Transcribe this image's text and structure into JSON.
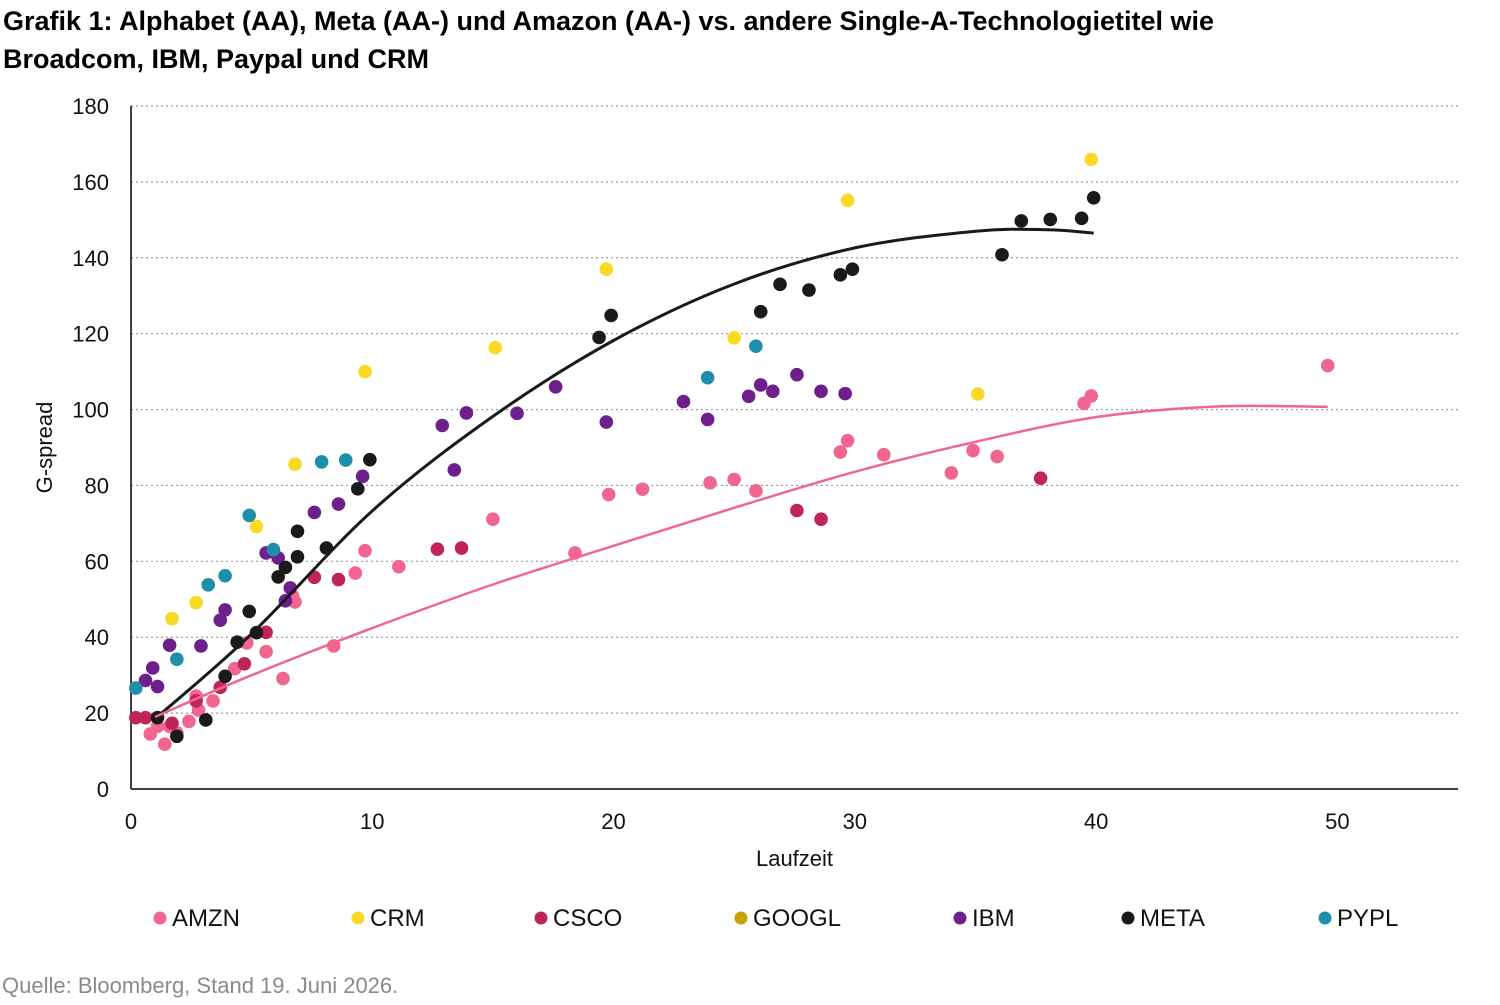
{
  "title_line1": "Grafik 1: Alphabet (AA), Meta (AA-) und Amazon (AA-) vs. andere Single-A-Technologietitel wie",
  "title_line2": "Broadcom, IBM, Paypal und CRM",
  "source": "Quelle: Bloomberg, Stand 19. Juni 2026.",
  "chart_data": {
    "type": "scatter",
    "xlabel": "Laufzeit",
    "ylabel": "G-spread",
    "xlim": [
      0,
      55
    ],
    "ylim": [
      0,
      180
    ],
    "x_ticks": [
      0,
      10,
      20,
      30,
      40,
      50
    ],
    "y_ticks": [
      0,
      20,
      40,
      60,
      80,
      100,
      120,
      140,
      160,
      180
    ],
    "grid": "horizontal dotted",
    "legend_position": "bottom",
    "series": [
      {
        "name": "AMZN",
        "color": "#f0668f",
        "points": [
          [
            0.8,
            14.5
          ],
          [
            1.1,
            16.5
          ],
          [
            1.4,
            11.8
          ],
          [
            1.6,
            16.5
          ],
          [
            1.9,
            14.8
          ],
          [
            2.4,
            17.8
          ],
          [
            2.7,
            24.5
          ],
          [
            2.8,
            20.8
          ],
          [
            3.4,
            23.2
          ],
          [
            4.3,
            31.7
          ],
          [
            4.8,
            38.5
          ],
          [
            5.6,
            36.2
          ],
          [
            6.3,
            29.1
          ],
          [
            6.7,
            50.8
          ],
          [
            6.8,
            49.3
          ],
          [
            8.4,
            37.7
          ],
          [
            9.3,
            56.9
          ],
          [
            9.7,
            62.8
          ],
          [
            11.1,
            58.6
          ],
          [
            15.0,
            71.1
          ],
          [
            18.4,
            62.2
          ],
          [
            19.8,
            77.6
          ],
          [
            21.2,
            79.0
          ],
          [
            24.0,
            80.7
          ],
          [
            25.0,
            81.6
          ],
          [
            25.9,
            78.6
          ],
          [
            29.4,
            88.8
          ],
          [
            29.7,
            91.8
          ],
          [
            31.2,
            88.1
          ],
          [
            34.0,
            83.3
          ],
          [
            34.9,
            89.2
          ],
          [
            35.9,
            87.6
          ],
          [
            39.5,
            101.6
          ],
          [
            39.8,
            103.6
          ],
          [
            49.6,
            111.6
          ]
        ]
      },
      {
        "name": "CRM",
        "color": "#f9d923",
        "points": [
          [
            1.7,
            44.9
          ],
          [
            2.7,
            49.1
          ],
          [
            5.2,
            69.2
          ],
          [
            6.8,
            85.6
          ],
          [
            9.7,
            110.0
          ],
          [
            15.1,
            116.3
          ],
          [
            19.7,
            137.0
          ],
          [
            25.0,
            118.9
          ],
          [
            29.7,
            155.1
          ],
          [
            35.1,
            104.1
          ],
          [
            39.8,
            165.9
          ]
        ]
      },
      {
        "name": "CSCO",
        "color": "#c0245c",
        "points": [
          [
            0.2,
            18.8
          ],
          [
            0.6,
            18.8
          ],
          [
            1.7,
            17.3
          ],
          [
            2.7,
            23.2
          ],
          [
            3.7,
            26.8
          ],
          [
            4.7,
            33.0
          ],
          [
            5.6,
            41.3
          ],
          [
            7.6,
            55.8
          ],
          [
            8.6,
            55.2
          ],
          [
            12.7,
            63.2
          ],
          [
            13.7,
            63.5
          ],
          [
            27.6,
            73.4
          ],
          [
            28.6,
            71.1
          ],
          [
            37.7,
            81.9
          ]
        ]
      },
      {
        "name": "GOOGL",
        "color": "#c8a400",
        "points": []
      },
      {
        "name": "IBM",
        "color": "#6d1f8c",
        "points": [
          [
            0.6,
            28.6
          ],
          [
            0.9,
            31.9
          ],
          [
            1.1,
            27.0
          ],
          [
            1.6,
            37.9
          ],
          [
            2.9,
            37.7
          ],
          [
            3.7,
            44.5
          ],
          [
            3.9,
            47.2
          ],
          [
            5.6,
            62.2
          ],
          [
            5.9,
            62.5
          ],
          [
            6.1,
            60.9
          ],
          [
            6.4,
            49.6
          ],
          [
            6.6,
            53.0
          ],
          [
            7.6,
            72.9
          ],
          [
            8.6,
            75.1
          ],
          [
            9.6,
            82.4
          ],
          [
            12.9,
            95.8
          ],
          [
            13.4,
            84.1
          ],
          [
            13.9,
            99.1
          ],
          [
            16.0,
            99.0
          ],
          [
            17.6,
            106.0
          ],
          [
            19.7,
            96.7
          ],
          [
            22.9,
            102.1
          ],
          [
            23.9,
            97.4
          ],
          [
            25.6,
            103.5
          ],
          [
            26.1,
            106.5
          ],
          [
            26.6,
            104.8
          ],
          [
            27.6,
            109.2
          ],
          [
            28.6,
            104.8
          ],
          [
            29.6,
            104.2
          ]
        ]
      },
      {
        "name": "META",
        "color": "#1a1a1a",
        "points": [
          [
            1.1,
            18.8
          ],
          [
            1.9,
            13.9
          ],
          [
            3.1,
            18.2
          ],
          [
            3.9,
            29.7
          ],
          [
            4.4,
            38.7
          ],
          [
            4.9,
            46.8
          ],
          [
            5.2,
            41.2
          ],
          [
            6.1,
            55.9
          ],
          [
            6.4,
            58.4
          ],
          [
            6.9,
            61.2
          ],
          [
            6.9,
            67.9
          ],
          [
            8.1,
            63.5
          ],
          [
            9.4,
            79.1
          ],
          [
            9.9,
            86.8
          ],
          [
            19.4,
            119.0
          ],
          [
            19.9,
            124.8
          ],
          [
            26.1,
            125.8
          ],
          [
            26.9,
            133.0
          ],
          [
            28.1,
            131.5
          ],
          [
            29.4,
            135.5
          ],
          [
            29.9,
            137.0
          ],
          [
            36.1,
            140.8
          ],
          [
            36.9,
            149.7
          ],
          [
            38.1,
            150.1
          ],
          [
            39.4,
            150.4
          ],
          [
            39.9,
            155.8
          ]
        ]
      },
      {
        "name": "PYPL",
        "color": "#1e8fa8",
        "points": [
          [
            0.2,
            26.6
          ],
          [
            1.9,
            34.2
          ],
          [
            3.2,
            53.8
          ],
          [
            3.9,
            56.2
          ],
          [
            4.9,
            72.1
          ],
          [
            5.9,
            63.1
          ],
          [
            7.9,
            86.2
          ],
          [
            8.9,
            86.7
          ],
          [
            23.9,
            108.4
          ],
          [
            25.9,
            116.7
          ]
        ]
      }
    ],
    "trendlines": [
      {
        "series": "META",
        "color": "#1a1a1a",
        "x_range": [
          1.0,
          39.9
        ],
        "curve": [
          [
            1.0,
            18.5
          ],
          [
            5.0,
            40.9
          ],
          [
            10.0,
            73.3
          ],
          [
            15.0,
            98.2
          ],
          [
            20.0,
            118.2
          ],
          [
            25.0,
            133.1
          ],
          [
            30.0,
            142.6
          ],
          [
            35.0,
            147.0
          ],
          [
            38.0,
            147.4
          ],
          [
            39.9,
            146.5
          ]
        ]
      },
      {
        "series": "AMZN",
        "color": "#f0668f",
        "x_range": [
          1.0,
          49.6
        ],
        "curve": [
          [
            1.0,
            19.0
          ],
          [
            5.0,
            30.0
          ],
          [
            10.0,
            42.4
          ],
          [
            15.0,
            53.9
          ],
          [
            20.0,
            64.1
          ],
          [
            25.0,
            74.1
          ],
          [
            30.0,
            83.6
          ],
          [
            35.0,
            91.5
          ],
          [
            40.0,
            98.0
          ],
          [
            45.0,
            100.8
          ],
          [
            49.6,
            100.7
          ]
        ]
      }
    ]
  }
}
